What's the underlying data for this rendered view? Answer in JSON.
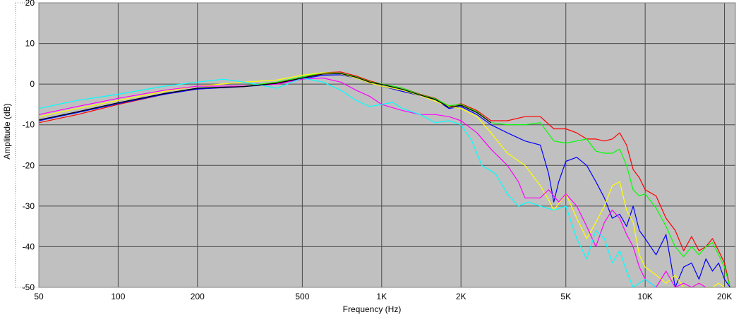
{
  "chart_data": {
    "type": "line",
    "title": "",
    "xlabel": "Frequency (Hz)",
    "ylabel": "Amplitude (dB)",
    "xscale": "log",
    "xlim": [
      50,
      22000
    ],
    "ylim": [
      -50,
      20
    ],
    "grid": true,
    "plot_background": "#C0C0C0",
    "grid_color": "#4A4A4A",
    "x_ticks": [
      {
        "value": 50,
        "label": "50"
      },
      {
        "value": 100,
        "label": "100"
      },
      {
        "value": 200,
        "label": "200"
      },
      {
        "value": 500,
        "label": "500"
      },
      {
        "value": 1000,
        "label": "1K"
      },
      {
        "value": 2000,
        "label": "2K"
      },
      {
        "value": 5000,
        "label": "5K"
      },
      {
        "value": 10000,
        "label": "10K"
      },
      {
        "value": 20000,
        "label": "20K"
      }
    ],
    "y_ticks": [
      {
        "value": 20,
        "label": "20"
      },
      {
        "value": 10,
        "label": "10"
      },
      {
        "value": 0,
        "label": "0"
      },
      {
        "value": -10,
        "label": "-10"
      },
      {
        "value": -20,
        "label": "-20"
      },
      {
        "value": -30,
        "label": "-30"
      },
      {
        "value": -40,
        "label": "-40"
      },
      {
        "value": -50,
        "label": "-50"
      }
    ],
    "series": [
      {
        "color": "#FF0000",
        "points": [
          [
            50,
            -9.5
          ],
          [
            70,
            -7.5
          ],
          [
            100,
            -5
          ],
          [
            150,
            -2.5
          ],
          [
            200,
            -1.2
          ],
          [
            300,
            -0.5
          ],
          [
            400,
            0.3
          ],
          [
            500,
            1.5
          ],
          [
            600,
            2.8
          ],
          [
            700,
            3.0
          ],
          [
            800,
            2.0
          ],
          [
            900,
            0.8
          ],
          [
            1000,
            0
          ],
          [
            1200,
            -1
          ],
          [
            1400,
            -2.5
          ],
          [
            1600,
            -3.5
          ],
          [
            1800,
            -5.5
          ],
          [
            2000,
            -4.8
          ],
          [
            2300,
            -6.5
          ],
          [
            2600,
            -9
          ],
          [
            3000,
            -9
          ],
          [
            3500,
            -8
          ],
          [
            4000,
            -8
          ],
          [
            4500,
            -11
          ],
          [
            5000,
            -11
          ],
          [
            5500,
            -12
          ],
          [
            6000,
            -13.5
          ],
          [
            6500,
            -13.5
          ],
          [
            7000,
            -14
          ],
          [
            7500,
            -13.5
          ],
          [
            8000,
            -12
          ],
          [
            8500,
            -15
          ],
          [
            9000,
            -21
          ],
          [
            9500,
            -23
          ],
          [
            10000,
            -26
          ],
          [
            11000,
            -27.5
          ],
          [
            12000,
            -33
          ],
          [
            13000,
            -36
          ],
          [
            14000,
            -41
          ],
          [
            15000,
            -37.5
          ],
          [
            16000,
            -41
          ],
          [
            17000,
            -40
          ],
          [
            18000,
            -38
          ],
          [
            19000,
            -41
          ],
          [
            20000,
            -44
          ],
          [
            21000,
            -50
          ]
        ]
      },
      {
        "color": "#00FF00",
        "points": [
          [
            50,
            -9
          ],
          [
            70,
            -7
          ],
          [
            100,
            -4.8
          ],
          [
            150,
            -2.3
          ],
          [
            200,
            -1
          ],
          [
            300,
            -0.5
          ],
          [
            400,
            0.5
          ],
          [
            500,
            1.8
          ],
          [
            600,
            2.8
          ],
          [
            700,
            2.7
          ],
          [
            800,
            1.8
          ],
          [
            900,
            0.6
          ],
          [
            1000,
            0
          ],
          [
            1200,
            -1
          ],
          [
            1400,
            -2.6
          ],
          [
            1600,
            -3.6
          ],
          [
            1800,
            -5.3
          ],
          [
            2000,
            -5
          ],
          [
            2300,
            -6.8
          ],
          [
            2600,
            -9.5
          ],
          [
            3000,
            -10
          ],
          [
            3500,
            -10
          ],
          [
            4000,
            -9.5
          ],
          [
            4500,
            -14
          ],
          [
            5000,
            -14.5
          ],
          [
            5500,
            -14
          ],
          [
            6000,
            -13.5
          ],
          [
            6500,
            -16.5
          ],
          [
            7000,
            -17
          ],
          [
            7500,
            -17
          ],
          [
            8000,
            -16
          ],
          [
            8500,
            -20
          ],
          [
            9000,
            -26
          ],
          [
            9500,
            -27.5
          ],
          [
            10000,
            -27
          ],
          [
            11000,
            -30.5
          ],
          [
            12000,
            -35
          ],
          [
            13000,
            -40
          ],
          [
            14000,
            -42.5
          ],
          [
            15000,
            -40
          ],
          [
            16000,
            -42
          ],
          [
            17000,
            -40
          ],
          [
            18000,
            -39
          ],
          [
            19000,
            -42
          ],
          [
            20000,
            -45
          ],
          [
            21000,
            -50
          ]
        ]
      },
      {
        "color": "#0000FF",
        "points": [
          [
            50,
            -9
          ],
          [
            70,
            -7
          ],
          [
            100,
            -4.8
          ],
          [
            150,
            -2.5
          ],
          [
            200,
            -1.2
          ],
          [
            300,
            -0.6
          ],
          [
            400,
            0
          ],
          [
            500,
            1.3
          ],
          [
            600,
            2.2
          ],
          [
            700,
            2.3
          ],
          [
            800,
            1.5
          ],
          [
            900,
            0.3
          ],
          [
            1000,
            -0.5
          ],
          [
            1200,
            -1.8
          ],
          [
            1400,
            -2.8
          ],
          [
            1600,
            -3.8
          ],
          [
            1800,
            -6
          ],
          [
            2000,
            -5.5
          ],
          [
            2300,
            -7.5
          ],
          [
            2600,
            -10
          ],
          [
            3000,
            -12
          ],
          [
            3500,
            -14
          ],
          [
            4000,
            -15
          ],
          [
            4300,
            -22
          ],
          [
            4500,
            -29
          ],
          [
            4700,
            -24
          ],
          [
            5000,
            -19
          ],
          [
            5500,
            -18
          ],
          [
            6000,
            -20
          ],
          [
            6500,
            -24
          ],
          [
            7000,
            -28
          ],
          [
            7500,
            -33
          ],
          [
            8000,
            -32
          ],
          [
            8500,
            -35
          ],
          [
            9000,
            -30
          ],
          [
            9500,
            -36
          ],
          [
            10000,
            -38
          ],
          [
            11000,
            -42
          ],
          [
            12000,
            -37
          ],
          [
            13000,
            -50
          ],
          [
            14000,
            -45
          ],
          [
            15000,
            -44
          ],
          [
            16000,
            -48
          ],
          [
            17000,
            -43
          ],
          [
            18000,
            -46
          ],
          [
            19000,
            -44
          ],
          [
            20000,
            -48
          ],
          [
            21000,
            -50
          ]
        ]
      },
      {
        "color": "#FFFF00",
        "points": [
          [
            50,
            -8
          ],
          [
            70,
            -6
          ],
          [
            100,
            -4
          ],
          [
            150,
            -1.8
          ],
          [
            200,
            -0.5
          ],
          [
            300,
            0.5
          ],
          [
            400,
            1
          ],
          [
            500,
            2.2
          ],
          [
            600,
            2.8
          ],
          [
            700,
            2.5
          ],
          [
            800,
            1.5
          ],
          [
            900,
            0.3
          ],
          [
            1000,
            -0.5
          ],
          [
            1200,
            -1.5
          ],
          [
            1400,
            -2.8
          ],
          [
            1600,
            -4.2
          ],
          [
            1800,
            -5.5
          ],
          [
            2000,
            -6
          ],
          [
            2300,
            -8
          ],
          [
            2600,
            -12
          ],
          [
            3000,
            -17
          ],
          [
            3500,
            -20
          ],
          [
            4000,
            -25
          ],
          [
            4300,
            -28.5
          ],
          [
            4500,
            -31
          ],
          [
            5000,
            -27
          ],
          [
            5500,
            -33
          ],
          [
            6000,
            -38
          ],
          [
            6500,
            -34
          ],
          [
            7000,
            -30
          ],
          [
            7500,
            -25
          ],
          [
            8000,
            -24
          ],
          [
            8500,
            -31
          ],
          [
            9000,
            -34
          ],
          [
            9500,
            -42
          ],
          [
            10000,
            -45
          ],
          [
            11000,
            -47
          ],
          [
            12000,
            -49
          ],
          [
            13000,
            -47
          ],
          [
            14000,
            -50
          ],
          [
            15000,
            -50
          ],
          [
            16000,
            -49
          ],
          [
            17000,
            -50
          ],
          [
            18000,
            -50
          ],
          [
            19000,
            -49
          ],
          [
            20000,
            -50
          ]
        ]
      },
      {
        "color": "#FF00FF",
        "points": [
          [
            50,
            -7.5
          ],
          [
            70,
            -5.5
          ],
          [
            100,
            -3.5
          ],
          [
            150,
            -1.5
          ],
          [
            200,
            -0.5
          ],
          [
            300,
            -0.5
          ],
          [
            400,
            0
          ],
          [
            500,
            1.2
          ],
          [
            600,
            1.5
          ],
          [
            700,
            0.5
          ],
          [
            800,
            -1.5
          ],
          [
            900,
            -3
          ],
          [
            1000,
            -5
          ],
          [
            1200,
            -6.5
          ],
          [
            1400,
            -7.5
          ],
          [
            1600,
            -7.5
          ],
          [
            1800,
            -8
          ],
          [
            2000,
            -9
          ],
          [
            2300,
            -12
          ],
          [
            2600,
            -16
          ],
          [
            3000,
            -20
          ],
          [
            3300,
            -24
          ],
          [
            3500,
            -28
          ],
          [
            4000,
            -28
          ],
          [
            4300,
            -26
          ],
          [
            4700,
            -29
          ],
          [
            5000,
            -27
          ],
          [
            5500,
            -30
          ],
          [
            6000,
            -35
          ],
          [
            6500,
            -40
          ],
          [
            7000,
            -34
          ],
          [
            7500,
            -31
          ],
          [
            8000,
            -33
          ],
          [
            8500,
            -37
          ],
          [
            9000,
            -40
          ],
          [
            9500,
            -45
          ],
          [
            10000,
            -48
          ],
          [
            11000,
            -50
          ],
          [
            12000,
            -46
          ],
          [
            13000,
            -50
          ],
          [
            14000,
            -49
          ],
          [
            15000,
            -50
          ],
          [
            16000,
            -49
          ],
          [
            17000,
            -50
          ]
        ]
      },
      {
        "color": "#00FFFF",
        "points": [
          [
            50,
            -6
          ],
          [
            70,
            -4
          ],
          [
            100,
            -2.5
          ],
          [
            150,
            -0.5
          ],
          [
            200,
            0.5
          ],
          [
            250,
            1.2
          ],
          [
            300,
            0.5
          ],
          [
            400,
            -1
          ],
          [
            500,
            1.5
          ],
          [
            600,
            0.5
          ],
          [
            700,
            -1.5
          ],
          [
            800,
            -4
          ],
          [
            900,
            -5.5
          ],
          [
            1000,
            -5
          ],
          [
            1100,
            -4.5
          ],
          [
            1200,
            -6
          ],
          [
            1400,
            -7.5
          ],
          [
            1600,
            -9.5
          ],
          [
            1800,
            -9
          ],
          [
            2000,
            -10
          ],
          [
            2200,
            -14
          ],
          [
            2400,
            -20
          ],
          [
            2700,
            -22
          ],
          [
            3000,
            -27
          ],
          [
            3300,
            -30
          ],
          [
            3600,
            -29
          ],
          [
            4000,
            -30
          ],
          [
            4500,
            -31
          ],
          [
            5000,
            -30
          ],
          [
            5500,
            -38
          ],
          [
            6000,
            -43
          ],
          [
            6500,
            -36
          ],
          [
            7000,
            -38
          ],
          [
            7500,
            -44
          ],
          [
            8000,
            -41
          ],
          [
            8500,
            -46
          ],
          [
            9000,
            -50
          ],
          [
            10000,
            -48
          ],
          [
            11000,
            -50
          ]
        ]
      },
      {
        "color": "#000000",
        "points": [
          [
            50,
            -8.8
          ],
          [
            70,
            -6.8
          ],
          [
            100,
            -4.6
          ],
          [
            150,
            -2.3
          ],
          [
            200,
            -1
          ],
          [
            300,
            -0.6
          ],
          [
            400,
            0.2
          ],
          [
            500,
            1.5
          ],
          [
            600,
            2.5
          ],
          [
            700,
            2.6
          ],
          [
            800,
            1.7
          ],
          [
            900,
            0.5
          ],
          [
            1000,
            -0.1
          ],
          [
            1200,
            -1.3
          ],
          [
            1400,
            -2.7
          ],
          [
            1600,
            -3.8
          ],
          [
            1800,
            -5.7
          ],
          [
            2000,
            -5.2
          ],
          [
            2300,
            -7
          ],
          [
            2600,
            -9.5
          ]
        ]
      }
    ]
  }
}
